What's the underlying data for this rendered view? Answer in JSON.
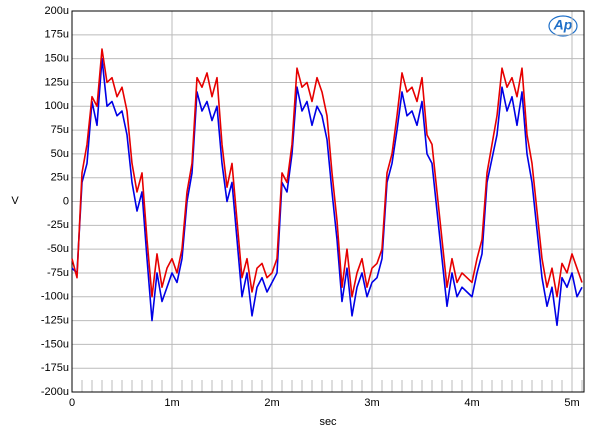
{
  "chart_data": {
    "type": "line",
    "logo": "Ap",
    "x_label": "sec",
    "y_label": "V",
    "xlim": [
      0,
      5.12
    ],
    "ylim": [
      -200,
      200
    ],
    "xticks": [
      0,
      {
        "value": 1,
        "label": "1m"
      },
      {
        "value": 2,
        "label": "2m"
      },
      {
        "value": 3,
        "label": "3m"
      },
      {
        "value": 4,
        "label": "4m"
      },
      {
        "value": 5,
        "label": "5m"
      }
    ],
    "yticks": [
      {
        "value": -200,
        "label": "-200u"
      },
      {
        "value": -175,
        "label": "-175u"
      },
      {
        "value": -150,
        "label": "-150u"
      },
      {
        "value": -125,
        "label": "-125u"
      },
      {
        "value": -100,
        "label": "-100u"
      },
      {
        "value": -75,
        "label": "-75u"
      },
      {
        "value": -50,
        "label": "-50u"
      },
      {
        "value": -25,
        "label": "-25u"
      },
      0,
      {
        "value": 25,
        "label": "25u"
      },
      {
        "value": 50,
        "label": "50u"
      },
      {
        "value": 75,
        "label": "75u"
      },
      {
        "value": 100,
        "label": "100u"
      },
      {
        "value": 125,
        "label": "125u"
      },
      {
        "value": 150,
        "label": "150u"
      },
      {
        "value": 175,
        "label": "175u"
      },
      {
        "value": 200,
        "label": "200u"
      }
    ],
    "grid": true,
    "x": [
      0,
      0.05,
      0.1,
      0.15,
      0.2,
      0.25,
      0.3,
      0.35,
      0.4,
      0.45,
      0.5,
      0.55,
      0.6,
      0.65,
      0.7,
      0.75,
      0.8,
      0.85,
      0.9,
      0.95,
      1,
      1.05,
      1.1,
      1.15,
      1.2,
      1.25,
      1.3,
      1.35,
      1.4,
      1.45,
      1.5,
      1.55,
      1.6,
      1.65,
      1.7,
      1.75,
      1.8,
      1.85,
      1.9,
      1.95,
      2,
      2.05,
      2.1,
      2.15,
      2.2,
      2.25,
      2.3,
      2.35,
      2.4,
      2.45,
      2.5,
      2.55,
      2.6,
      2.65,
      2.7,
      2.75,
      2.8,
      2.85,
      2.9,
      2.95,
      3,
      3.05,
      3.1,
      3.15,
      3.2,
      3.25,
      3.3,
      3.35,
      3.4,
      3.45,
      3.5,
      3.55,
      3.6,
      3.65,
      3.7,
      3.75,
      3.8,
      3.85,
      3.9,
      3.95,
      4,
      4.05,
      4.1,
      4.15,
      4.2,
      4.25,
      4.3,
      4.35,
      4.4,
      4.45,
      4.5,
      4.55,
      4.6,
      4.65,
      4.7,
      4.75,
      4.8,
      4.85,
      4.9,
      4.95,
      5,
      5.05,
      5.1
    ],
    "series": [
      {
        "color": "#0000e6",
        "values": [
          -70,
          -75,
          20,
          40,
          105,
          80,
          150,
          100,
          105,
          90,
          95,
          70,
          20,
          -10,
          10,
          -60,
          -125,
          -75,
          -105,
          -90,
          -75,
          -85,
          -60,
          0,
          30,
          115,
          95,
          105,
          85,
          100,
          40,
          0,
          20,
          -40,
          -100,
          -75,
          -120,
          -90,
          -80,
          -95,
          -85,
          -75,
          20,
          10,
          50,
          120,
          95,
          105,
          80,
          100,
          90,
          65,
          10,
          -40,
          -105,
          -70,
          -120,
          -90,
          -75,
          -100,
          -85,
          -80,
          -60,
          20,
          40,
          75,
          115,
          90,
          95,
          80,
          105,
          50,
          40,
          -10,
          -60,
          -110,
          -75,
          -100,
          -90,
          -95,
          -100,
          -75,
          -55,
          20,
          45,
          70,
          120,
          95,
          110,
          80,
          115,
          50,
          20,
          -30,
          -80,
          -110,
          -90,
          -130,
          -80,
          -90,
          -75,
          -100,
          -90
        ]
      },
      {
        "color": "#e60000",
        "values": [
          -60,
          -80,
          30,
          60,
          110,
          100,
          160,
          125,
          130,
          110,
          120,
          95,
          40,
          10,
          30,
          -40,
          -100,
          -55,
          -90,
          -70,
          -60,
          -75,
          -50,
          10,
          40,
          130,
          120,
          135,
          110,
          130,
          60,
          15,
          40,
          -20,
          -80,
          -60,
          -95,
          -70,
          -65,
          -80,
          -75,
          -60,
          30,
          20,
          60,
          140,
          120,
          125,
          105,
          130,
          115,
          90,
          30,
          -20,
          -90,
          -50,
          -100,
          -75,
          -60,
          -90,
          -70,
          -65,
          -50,
          30,
          50,
          90,
          135,
          115,
          120,
          105,
          130,
          70,
          60,
          10,
          -40,
          -90,
          -60,
          -85,
          -75,
          -80,
          -85,
          -60,
          -40,
          30,
          60,
          90,
          140,
          120,
          130,
          110,
          140,
          70,
          40,
          -10,
          -60,
          -90,
          -70,
          -100,
          -65,
          -75,
          -55,
          -70,
          -85
        ]
      }
    ]
  }
}
